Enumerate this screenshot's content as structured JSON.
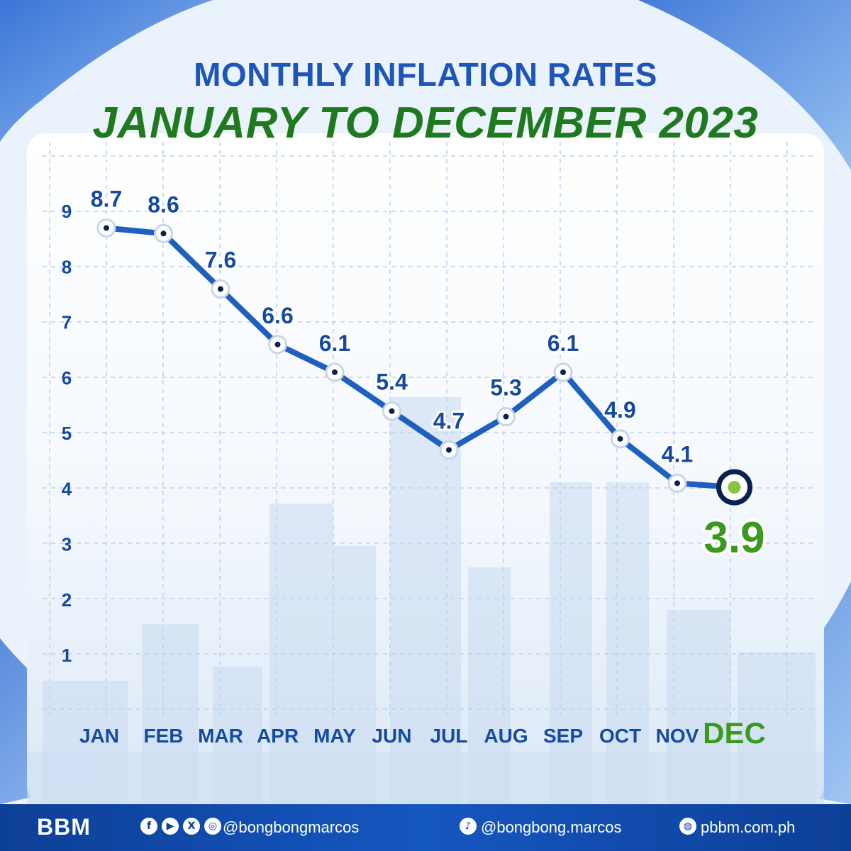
{
  "header": {
    "title": "MONTHLY INFLATION RATES",
    "subtitle": "JANUARY TO DECEMBER 2023"
  },
  "colors": {
    "title_blue": "#1e56b8",
    "subtitle_green": "#1f7a1f",
    "line_blue": "#1f5fbf",
    "label_blue": "#154a9e",
    "highlight_green": "#3a9a1e",
    "footer_blue": "#0d3f96"
  },
  "chart_data": {
    "type": "line",
    "title": "MONTHLY INFLATION RATES",
    "subtitle": "JANUARY TO DECEMBER 2023",
    "categories": [
      "JAN",
      "FEB",
      "MAR",
      "APR",
      "MAY",
      "JUN",
      "JUL",
      "AUG",
      "SEP",
      "OCT",
      "NOV",
      "DEC"
    ],
    "values": [
      8.7,
      8.6,
      7.6,
      6.6,
      6.1,
      5.4,
      4.7,
      5.3,
      6.1,
      4.9,
      4.1,
      3.9
    ],
    "value_labels": [
      "8.7",
      "8.6",
      "7.6",
      "6.6",
      "6.1",
      "5.4",
      "4.7",
      "5.3",
      "6.1",
      "4.9",
      "4.1",
      "3.9"
    ],
    "yticks": [
      1,
      2,
      3,
      4,
      5,
      6,
      7,
      8,
      9
    ],
    "ylim": [
      0,
      9
    ],
    "xlabel": "",
    "ylabel": "",
    "grid": true,
    "highlight": "DEC"
  },
  "footer": {
    "logo": "BBM",
    "social_icons": [
      "facebook-icon",
      "youtube-icon",
      "x-icon",
      "instagram-icon"
    ],
    "social_handle": "@bongbongmarcos",
    "tiktok_handle": "@bongbong.marcos",
    "website": "pbbm.com.ph"
  }
}
